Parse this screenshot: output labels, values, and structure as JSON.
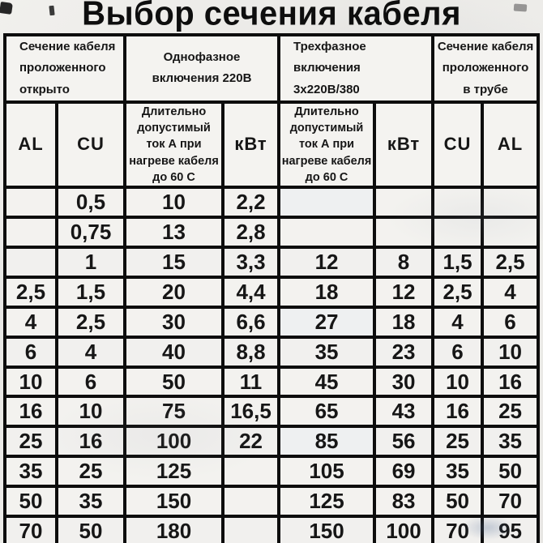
{
  "title": "Выбор сечения кабеля",
  "header_groups": [
    {
      "text": "Сечение кабеля\nпроложенного\nоткрыто"
    },
    {
      "text": "Однофазное\nвключения 220В"
    },
    {
      "text": "Трехфазное\nвключения\n3х220В/380"
    },
    {
      "text": "Сечение кабеля\nпроложенного\nв трубе"
    }
  ],
  "subheaders": [
    "AL",
    "CU",
    "Длительно\nдопустимый\nток А при\nнагреве кабеля\nдо 60 С",
    "кВт",
    "Длительно\nдопустимый\nток А при\nнагреве кабеля\nдо 60 С",
    "кВт",
    "CU",
    "AL"
  ],
  "rows": [
    [
      "",
      "0,5",
      "10",
      "2,2",
      "",
      "",
      "",
      ""
    ],
    [
      "",
      "0,75",
      "13",
      "2,8",
      "",
      "",
      "",
      ""
    ],
    [
      "",
      "1",
      "15",
      "3,3",
      "12",
      "8",
      "1,5",
      "2,5"
    ],
    [
      "2,5",
      "1,5",
      "20",
      "4,4",
      "18",
      "12",
      "2,5",
      "4"
    ],
    [
      "4",
      "2,5",
      "30",
      "6,6",
      "27",
      "18",
      "4",
      "6"
    ],
    [
      "6",
      "4",
      "40",
      "8,8",
      "35",
      "23",
      "6",
      "10"
    ],
    [
      "10",
      "6",
      "50",
      "11",
      "45",
      "30",
      "10",
      "16"
    ],
    [
      "16",
      "10",
      "75",
      "16,5",
      "65",
      "43",
      "16",
      "25"
    ],
    [
      "25",
      "16",
      "100",
      "22",
      "85",
      "56",
      "25",
      "35"
    ],
    [
      "35",
      "25",
      "125",
      "",
      "105",
      "69",
      "35",
      "50"
    ],
    [
      "50",
      "35",
      "150",
      "",
      "125",
      "83",
      "50",
      "70"
    ],
    [
      "70",
      "50",
      "180",
      "",
      "150",
      "100",
      "70",
      "95"
    ]
  ],
  "colors": {
    "ink": "#161616",
    "border": "#0d0d0d",
    "paper": "#eae9e6",
    "cell": "#f3f2ef"
  }
}
